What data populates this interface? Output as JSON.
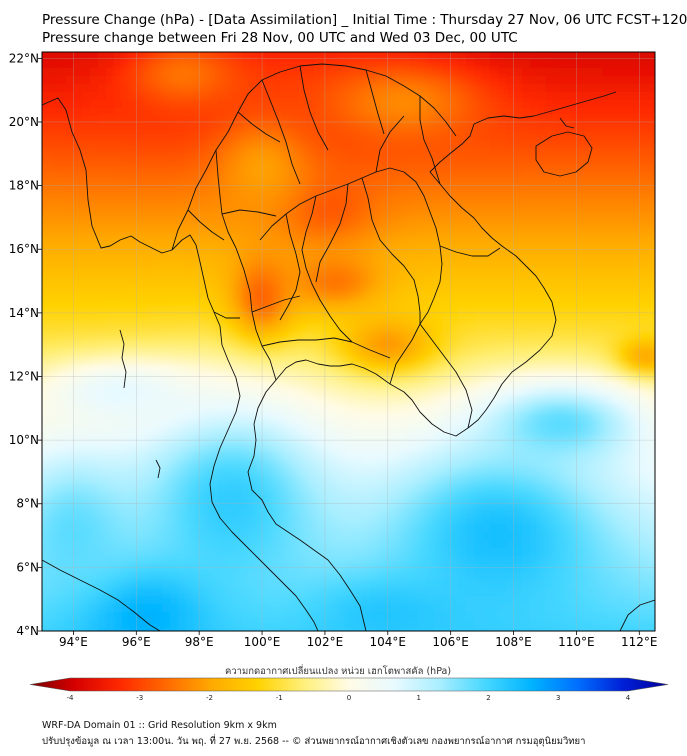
{
  "header": {
    "title_line1": "Pressure Change (hPa) - [Data Assimilation] _ Initial Time : Thursday 27 Nov, 06 UTC FCST+120",
    "title_line2": "Pressure change between Fri 28 Nov, 00 UTC and Wed 03 Dec, 00 UTC"
  },
  "map": {
    "lon_range": [
      93,
      112.5
    ],
    "lat_range": [
      4,
      22.2
    ],
    "lon_ticks": [
      {
        "value": 94,
        "label": "94°E"
      },
      {
        "value": 96,
        "label": "96°E"
      },
      {
        "value": 98,
        "label": "98°E"
      },
      {
        "value": 100,
        "label": "100°E"
      },
      {
        "value": 102,
        "label": "102°E"
      },
      {
        "value": 104,
        "label": "104°E"
      },
      {
        "value": 106,
        "label": "106°E"
      },
      {
        "value": 108,
        "label": "108°E"
      },
      {
        "value": 110,
        "label": "110°E"
      },
      {
        "value": 112,
        "label": "112°E"
      }
    ],
    "lat_ticks": [
      {
        "value": 4,
        "label": "4°N"
      },
      {
        "value": 6,
        "label": "6°N"
      },
      {
        "value": 8,
        "label": "8°N"
      },
      {
        "value": 10,
        "label": "10°N"
      },
      {
        "value": 12,
        "label": "12°N"
      },
      {
        "value": 14,
        "label": "14°N"
      },
      {
        "value": 16,
        "label": "16°N"
      },
      {
        "value": 18,
        "label": "18°N"
      },
      {
        "value": 20,
        "label": "20°N"
      },
      {
        "value": 22,
        "label": "22°N"
      }
    ],
    "field_blobs": [
      {
        "lon": 101.0,
        "lat": 21.0,
        "rlon": 5.0,
        "rlat": 1.8,
        "value": -2.8
      },
      {
        "lon": 97.5,
        "lat": 21.5,
        "rlon": 1.8,
        "rlat": 1.0,
        "value": -2.2
      },
      {
        "lon": 104.5,
        "lat": 20.6,
        "rlon": 2.5,
        "rlat": 1.2,
        "value": -2.0
      },
      {
        "lon": 102.0,
        "lat": 17.4,
        "rlon": 1.6,
        "rlat": 1.2,
        "value": -2.5
      },
      {
        "lon": 100.0,
        "lat": 14.5,
        "rlon": 1.0,
        "rlat": 1.3,
        "value": -2.4
      },
      {
        "lon": 102.3,
        "lat": 15.0,
        "rlon": 1.5,
        "rlat": 0.9,
        "value": -2.2
      },
      {
        "lon": 104.0,
        "lat": 13.0,
        "rlon": 1.5,
        "rlat": 0.9,
        "value": -1.9
      },
      {
        "lon": 112.2,
        "lat": 12.6,
        "rlon": 0.9,
        "rlat": 0.6,
        "value": -1.8
      },
      {
        "lon": 100.0,
        "lat": 18.5,
        "rlon": 1.5,
        "rlat": 1.5,
        "value": -1.8
      },
      {
        "lon": 99.0,
        "lat": 8.0,
        "rlon": 3.0,
        "rlat": 3.0,
        "value": 1.9
      },
      {
        "lon": 107.5,
        "lat": 7.0,
        "rlon": 3.5,
        "rlat": 2.8,
        "value": 2.1
      },
      {
        "lon": 96.0,
        "lat": 4.5,
        "rlon": 2.2,
        "rlat": 1.5,
        "value": 2.4
      },
      {
        "lon": 94.0,
        "lat": 7.0,
        "rlon": 2.0,
        "rlat": 2.5,
        "value": 1.6
      },
      {
        "lon": 109.5,
        "lat": 10.5,
        "rlon": 2.5,
        "rlat": 1.3,
        "value": 1.6
      },
      {
        "lon": 104.0,
        "lat": 4.5,
        "rlon": 2.5,
        "rlat": 1.2,
        "value": 2.0
      },
      {
        "lon": 95.5,
        "lat": 11.5,
        "rlon": 2.5,
        "rlat": 1.0,
        "value": 0.6
      }
    ],
    "field_background": -0.8,
    "field_south_gradient": 0.28
  },
  "colorbar": {
    "label": "ความกดอากาศเปลี่ยนแปลง หน่วย เฮกโตพาสคัล (hPa)",
    "min": -4,
    "max": 4,
    "ticks": [
      "-4",
      "-3",
      "-2",
      "-1",
      "0",
      "1",
      "2",
      "3",
      "4"
    ],
    "stops": [
      "#7a0000",
      "#d60000",
      "#ff2a00",
      "#ff6a00",
      "#ffaa00",
      "#ffd200",
      "#fff07a",
      "#fffbe6",
      "#e8faff",
      "#a8eeff",
      "#46d7ff",
      "#00b4ff",
      "#0070ff",
      "#0020d8",
      "#00009a"
    ]
  },
  "footer": {
    "line1": "WRF-DA Domain 01 :: Grid Resolution 9km x 9km",
    "line2": "ปรับปรุงข้อมูล ณ เวลา 13:00น. วัน พฤ. ที่ 27 พ.ย. 2568 -- © ส่วนพยากรณ์อากาศเชิงตัวเลข กองพยากรณ์อากาศ กรมอุตุนิยมวิทยา"
  },
  "colors": {
    "coastline": "#111111",
    "gridline": "#b0b0b0"
  }
}
